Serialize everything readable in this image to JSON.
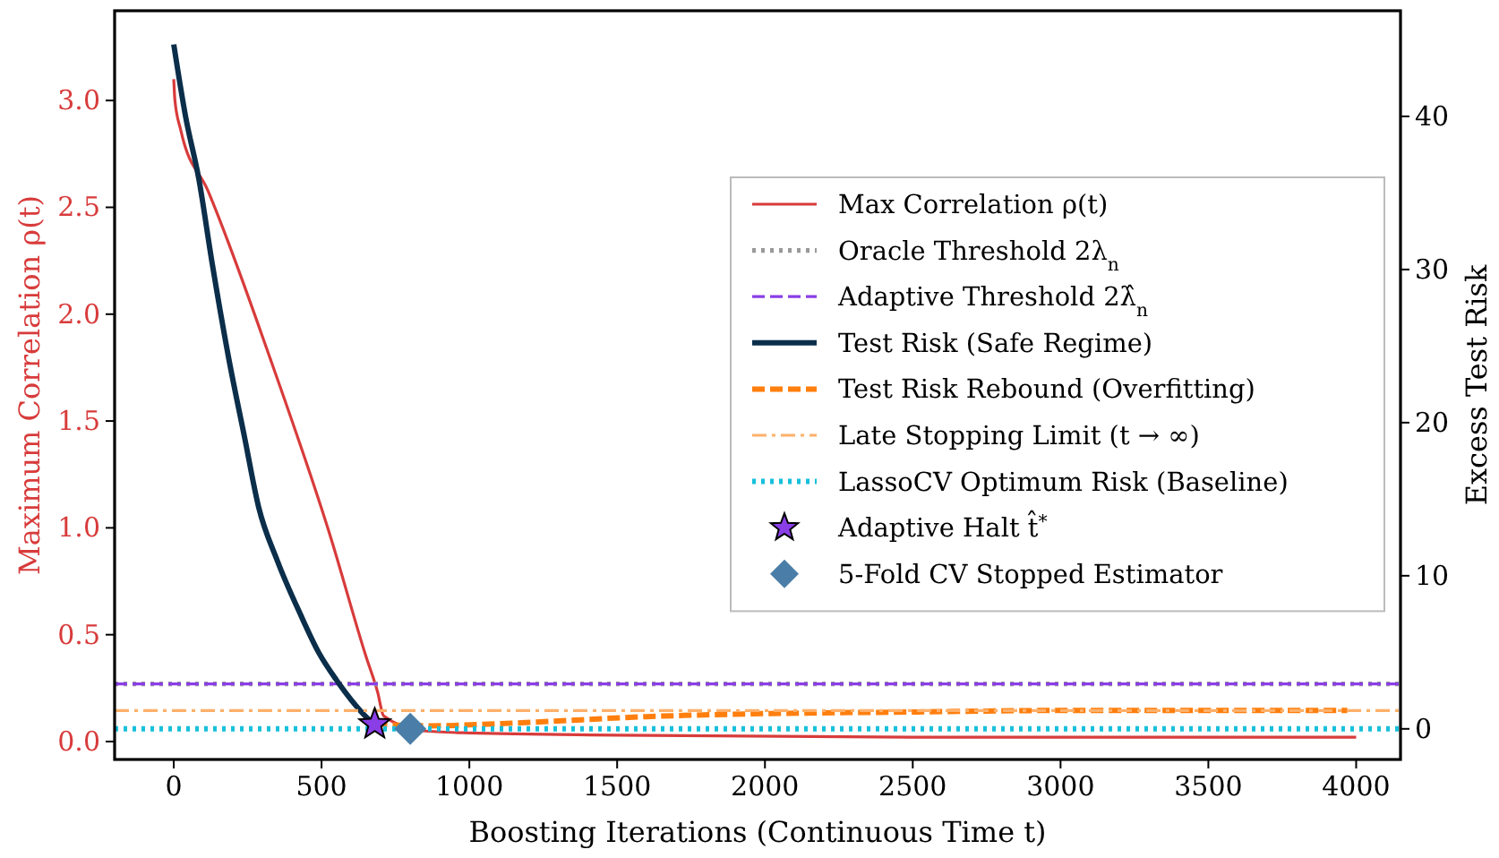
{
  "chart_data": {
    "type": "line",
    "xlabel": "Boosting Iterations (Continuous Time t)",
    "ylabel": "Maximum Correlation ρ(t)",
    "y2label": "Excess Test Risk",
    "xlim": [
      -200,
      4150
    ],
    "xticks": [
      0,
      500,
      1000,
      1500,
      2000,
      2500,
      3000,
      3500,
      4000
    ],
    "ylim": [
      -0.084,
      3.42
    ],
    "yticks": [
      {
        "value": 0,
        "label": "0.0"
      },
      {
        "value": 0.5,
        "label": "0.5"
      },
      {
        "value": 1,
        "label": "1.0"
      },
      {
        "value": 1.5,
        "label": "1.5"
      },
      {
        "value": 2,
        "label": "2.0"
      },
      {
        "value": 2.5,
        "label": "2.5"
      },
      {
        "value": 3,
        "label": "3.0"
      }
    ],
    "y2lim": [
      -2,
      46.9
    ],
    "y2ticks": [
      0,
      10,
      20,
      30,
      40
    ],
    "legend": "right",
    "grid": false,
    "series": [
      {
        "name": "Max Correlation ρ(t)",
        "axis": "y",
        "color": "#d83b3b",
        "line_style": "solid",
        "x": [
          0,
          4,
          24,
          115,
          327,
          530,
          650,
          690,
          710,
          842,
          1000,
          1500,
          2500,
          4000
        ],
        "values": [
          3.1,
          3.0,
          2.86,
          2.58,
          1.79,
          0.96,
          0.4,
          0.23,
          0.12,
          0.05,
          0.04,
          0.03,
          0.02,
          0.02
        ]
      },
      {
        "name": "Oracle Threshold 2λ$_{n}$",
        "axis": "y",
        "color": "#999999",
        "line_style": "dotted",
        "x": [
          -200,
          4150
        ],
        "values": [
          0.27,
          0.27
        ]
      },
      {
        "name": "Adaptive Threshold 2λ̂$_{n}$",
        "axis": "y",
        "color": "#8a3ee6",
        "line_style": "dashed",
        "x": [
          -200,
          4150
        ],
        "values": [
          0.27,
          0.27
        ]
      },
      {
        "name": "Test Risk (Safe Regime)",
        "axis": "y2",
        "color": "#0b2e4a",
        "line_style": "solid",
        "x": [
          0,
          40,
          85,
          130,
          186,
          240,
          287,
          350,
          428,
          490,
          550,
          600,
          650,
          680
        ],
        "values": [
          44.7,
          40,
          35.9,
          30.4,
          24.2,
          19,
          14.5,
          11,
          7.5,
          5,
          3.2,
          1.9,
          0.8,
          0.3
        ]
      },
      {
        "name": "Test Risk Rebound (Overfitting)",
        "axis": "y2",
        "color": "#ff7f0e",
        "line_style": "dashed",
        "x": [
          680,
          860,
          1176,
          1600,
          2016,
          2500,
          3000,
          3970
        ],
        "values": [
          0.3,
          0.2,
          0.4,
          0.8,
          1,
          1.1,
          1.2,
          1.2
        ]
      },
      {
        "name": "Late Stopping Limit (t → ∞)",
        "axis": "y2",
        "color": "#fdb06a",
        "line_style": "dashdot",
        "x": [
          -200,
          4150
        ],
        "values": [
          1.2,
          1.2
        ]
      },
      {
        "name": "LassoCV Optimum Risk (Baseline)",
        "axis": "y2",
        "color": "#17c0dc",
        "line_style": "dotted",
        "x": [
          -200,
          4150
        ],
        "values": [
          0,
          0
        ]
      },
      {
        "name": "Adaptive Halt t̂$^{*}$",
        "type": "scatter",
        "axis": "y2",
        "color": "#8a3ee6",
        "marker": "star",
        "x": [
          680
        ],
        "values": [
          0.3
        ]
      },
      {
        "name": "5-Fold CV Stopped Estimator",
        "type": "scatter",
        "axis": "y2",
        "color": "#4a7ea8",
        "marker": "diamond",
        "x": [
          800
        ],
        "values": [
          0
        ]
      }
    ]
  }
}
